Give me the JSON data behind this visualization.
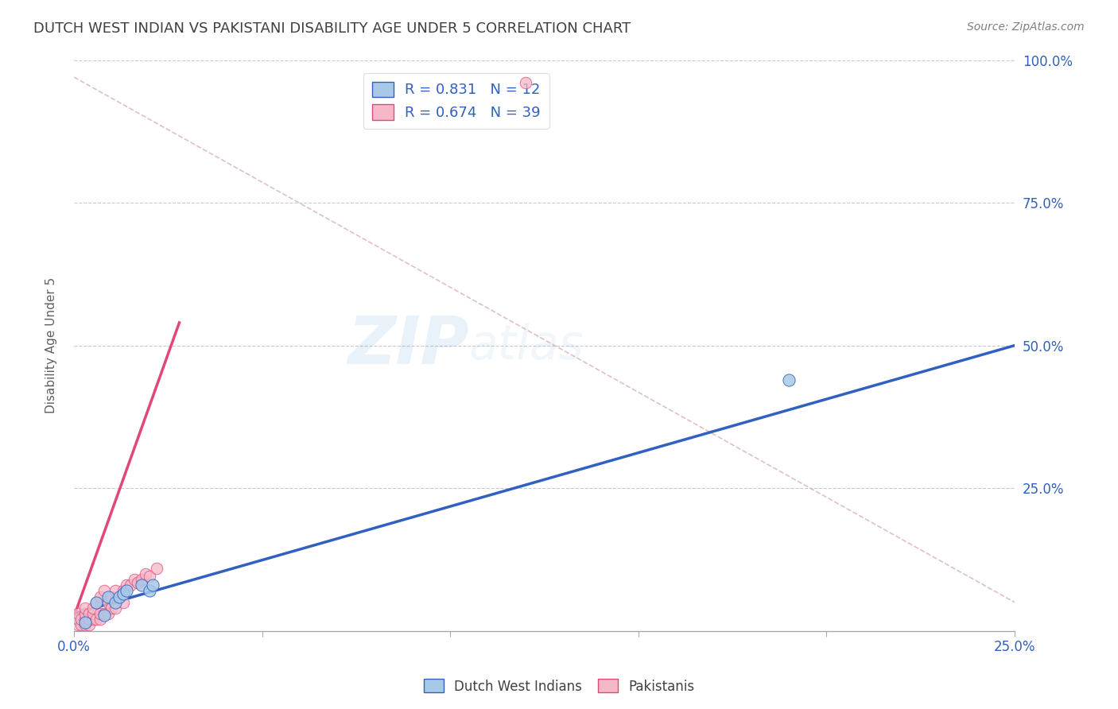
{
  "title": "DUTCH WEST INDIAN VS PAKISTANI DISABILITY AGE UNDER 5 CORRELATION CHART",
  "source": "Source: ZipAtlas.com",
  "ylabel": "Disability Age Under 5",
  "watermark": "ZIPatlas",
  "xlim": [
    0.0,
    0.25
  ],
  "ylim": [
    0.0,
    1.0
  ],
  "blue_r": "0.831",
  "blue_n": "12",
  "pink_r": "0.674",
  "pink_n": "39",
  "blue_color": "#A8C8E8",
  "pink_color": "#F4B8C8",
  "blue_line_color": "#3060C0",
  "pink_line_color": "#E04878",
  "dashed_line_color": "#D8B0B8",
  "grid_color": "#C8C8D8",
  "text_color": "#3060C0",
  "title_color": "#404040",
  "blue_points_x": [
    0.003,
    0.006,
    0.008,
    0.009,
    0.011,
    0.012,
    0.013,
    0.014,
    0.018,
    0.02,
    0.021,
    0.19
  ],
  "blue_points_y": [
    0.015,
    0.05,
    0.028,
    0.06,
    0.05,
    0.06,
    0.065,
    0.07,
    0.08,
    0.07,
    0.08,
    0.44
  ],
  "pink_points_x": [
    0.001,
    0.001,
    0.001,
    0.002,
    0.002,
    0.003,
    0.003,
    0.003,
    0.003,
    0.004,
    0.004,
    0.004,
    0.005,
    0.005,
    0.005,
    0.006,
    0.006,
    0.007,
    0.007,
    0.007,
    0.008,
    0.008,
    0.009,
    0.009,
    0.01,
    0.01,
    0.011,
    0.011,
    0.013,
    0.013,
    0.014,
    0.015,
    0.016,
    0.017,
    0.018,
    0.019,
    0.02,
    0.022,
    0.12
  ],
  "pink_points_y": [
    0.01,
    0.02,
    0.03,
    0.01,
    0.02,
    0.01,
    0.02,
    0.03,
    0.04,
    0.01,
    0.02,
    0.03,
    0.02,
    0.03,
    0.04,
    0.02,
    0.05,
    0.02,
    0.03,
    0.06,
    0.03,
    0.07,
    0.03,
    0.05,
    0.04,
    0.06,
    0.04,
    0.07,
    0.05,
    0.07,
    0.08,
    0.08,
    0.09,
    0.085,
    0.09,
    0.1,
    0.095,
    0.11,
    0.96
  ],
  "blue_line_x": [
    0.0,
    0.25
  ],
  "blue_line_y": [
    0.03,
    0.5
  ],
  "pink_line_x": [
    0.0,
    0.028
  ],
  "pink_line_y": [
    0.025,
    0.54
  ],
  "dashed_line_x": [
    0.0,
    0.25
  ],
  "dashed_line_y": [
    0.97,
    0.05
  ],
  "background_color": "#FFFFFF",
  "legend_fontsize": 13,
  "title_fontsize": 13,
  "axis_label_fontsize": 11,
  "tick_fontsize": 12,
  "watermark_fontsize": 60,
  "watermark_alpha": 0.12
}
